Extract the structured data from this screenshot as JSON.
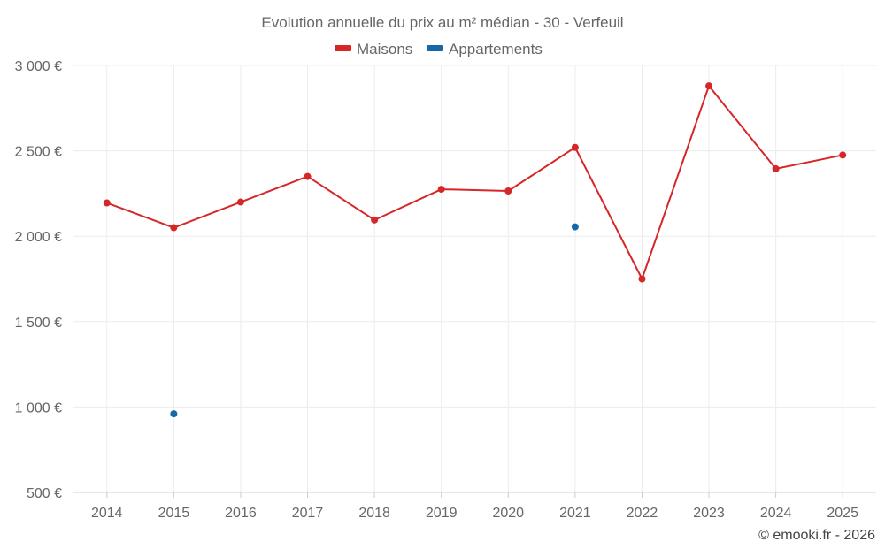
{
  "chart_data": {
    "type": "line",
    "title": "Evolution annuelle du prix au m² médian - 30 - Verfeuil",
    "categories": [
      "2014",
      "2015",
      "2016",
      "2017",
      "2018",
      "2019",
      "2020",
      "2021",
      "2022",
      "2023",
      "2024",
      "2025"
    ],
    "series": [
      {
        "name": "Maisons",
        "color": "#d62728",
        "values": [
          2195,
          2050,
          2200,
          2350,
          2095,
          2275,
          2265,
          2520,
          1750,
          2880,
          2395,
          2475
        ]
      },
      {
        "name": "Appartements",
        "color": "#1668a6",
        "values": [
          null,
          960,
          null,
          null,
          null,
          null,
          null,
          2055,
          null,
          null,
          null,
          null
        ]
      }
    ],
    "ylim": [
      500,
      3000
    ],
    "yticks": [
      500,
      1000,
      1500,
      2000,
      2500,
      3000
    ],
    "ytick_labels": [
      "500 €",
      "1 000 €",
      "1 500 €",
      "2 000 €",
      "2 500 €",
      "3 000 €"
    ],
    "legend_position": "top-center",
    "grid": true,
    "xlabel": "",
    "ylabel": ""
  },
  "credit": "© emooki.fr - 2026"
}
